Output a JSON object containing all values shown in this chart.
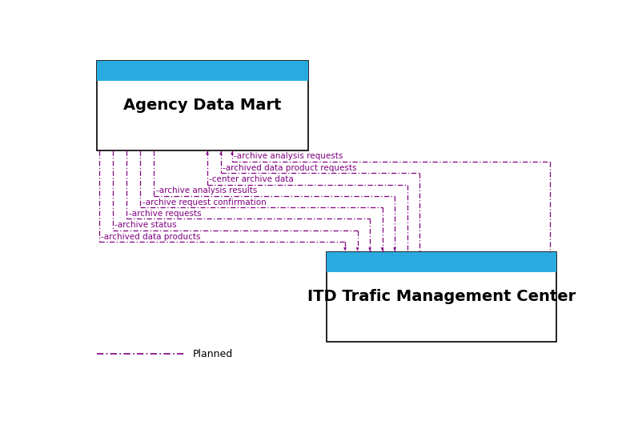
{
  "box1_label": "Agency Data Mart",
  "box2_label": "ITD Trafic Management Center",
  "box1_header_color": "#29abe2",
  "box2_header_color": "#29abe2",
  "arrow_color": "#800080",
  "legend_label": "Planned",
  "messages": [
    "archive analysis requests",
    "archived data product requests",
    "center archive data",
    "archive analysis results",
    "archive request confirmation",
    "archive requests",
    "archive status",
    "archived data products"
  ],
  "font_size_box1": 14,
  "font_size_box2": 14,
  "font_size_msg": 7.5,
  "font_size_legend": 9
}
